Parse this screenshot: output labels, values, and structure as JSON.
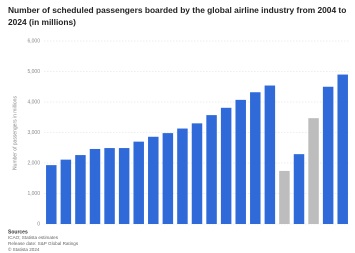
{
  "chart_data": {
    "type": "bar",
    "title": [
      "Number of scheduled passengers boarded by the global airline industry from 2004 to",
      "2024 (in millions)"
    ],
    "y_label": "Number of passengers in millions",
    "categories": [
      null,
      null,
      null,
      null,
      null,
      null,
      null,
      null,
      null,
      null,
      null,
      null,
      null,
      null,
      null,
      null,
      null,
      null,
      null,
      null,
      null
    ],
    "values": [
      1930,
      2110,
      2260,
      2460,
      2490,
      2490,
      2700,
      2860,
      2980,
      3130,
      3300,
      3570,
      3810,
      4070,
      4320,
      4540,
      1740,
      2290,
      3470,
      4500,
      4900
    ],
    "colors": [
      "#2f6ad8",
      "#2f6ad8",
      "#2f6ad8",
      "#2f6ad8",
      "#2f6ad8",
      "#2f6ad8",
      "#2f6ad8",
      "#2f6ad8",
      "#2f6ad8",
      "#2f6ad8",
      "#2f6ad8",
      "#2f6ad8",
      "#2f6ad8",
      "#2f6ad8",
      "#2f6ad8",
      "#2f6ad8",
      "#bdbdbd",
      "#2f6ad8",
      "#bdbdbd",
      "#2f6ad8",
      "#2f6ad8"
    ],
    "ylim": [
      0,
      6000
    ],
    "yticks": [
      0,
      {
        "value": 1000,
        "label": "1,000"
      },
      {
        "value": 2000,
        "label": "2,000"
      },
      {
        "value": 3000,
        "label": "3,000"
      },
      {
        "value": 4000,
        "label": "4,000"
      },
      {
        "value": 5000,
        "label": "5,000"
      },
      {
        "value": 6000,
        "label": "6,000"
      }
    ],
    "grid": true,
    "source": [
      "Sources",
      "ICAO; Statista estimates",
      "Release date: S&P Global Ratings",
      "© Statista 2024"
    ]
  }
}
